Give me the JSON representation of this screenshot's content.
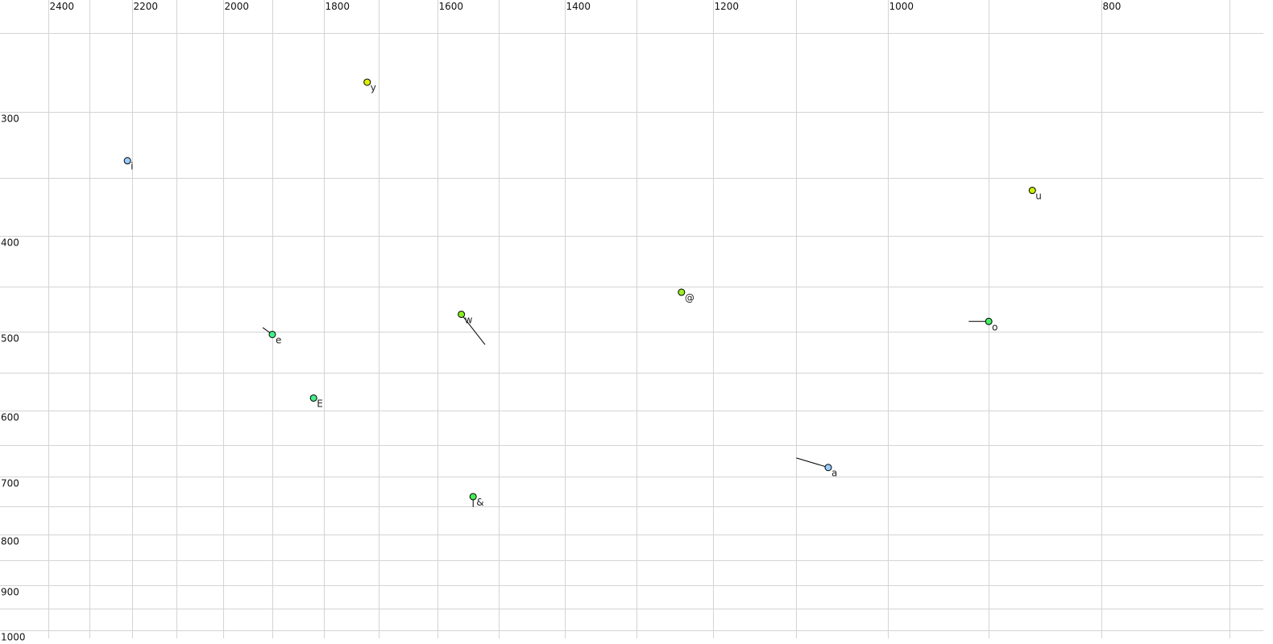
{
  "chart_data": {
    "type": "scatter",
    "title": "",
    "xlabel": "",
    "ylabel": "",
    "x_scale": "log",
    "y_scale": "log",
    "x_reversed": true,
    "xlim": [
      2400,
      700
    ],
    "ylim": [
      250,
      1000
    ],
    "grid": true,
    "x_ticks": [
      2400,
      2300,
      2200,
      2100,
      2000,
      1900,
      1800,
      1700,
      1600,
      1500,
      1400,
      1300,
      1200,
      1100,
      1000,
      900,
      800,
      700
    ],
    "x_tick_labels": [
      "2400",
      "",
      "2200",
      "",
      "2000",
      "",
      "1800",
      "",
      "1600",
      "",
      "1400",
      "",
      "1200",
      "",
      "1000",
      "",
      "800",
      ""
    ],
    "y_ticks": [
      250,
      300,
      350,
      400,
      450,
      500,
      550,
      600,
      650,
      700,
      750,
      800,
      850,
      900,
      950,
      1000
    ],
    "y_tick_labels": [
      "",
      "300",
      "",
      "400",
      "",
      "500",
      "",
      "600",
      "",
      "700",
      "",
      "800",
      "",
      "900",
      "",
      "1000"
    ],
    "points": [
      {
        "label": "y",
        "F2": 1721,
        "F1": 280,
        "color": "#ddee00"
      },
      {
        "label": "i",
        "F2": 2210,
        "F1": 336,
        "color": "#99ccff"
      },
      {
        "label": "u",
        "F2": 860,
        "F1": 360,
        "color": "#ccee00"
      },
      {
        "label": "@",
        "F2": 1240,
        "F1": 456,
        "color": "#99ee22"
      },
      {
        "label": "w",
        "F2": 1560,
        "F1": 480,
        "color": "#88ee22",
        "tail": {
          "F2": 1522,
          "F1": 515
        }
      },
      {
        "label": "o",
        "F2": 900,
        "F1": 488,
        "color": "#44ee66",
        "tail": {
          "F2": 919,
          "F1": 488
        }
      },
      {
        "label": "e",
        "F2": 1900,
        "F1": 503,
        "color": "#44ee88",
        "tail": {
          "F2": 1919,
          "F1": 495
        }
      },
      {
        "label": "E",
        "F2": 1820,
        "F1": 583,
        "color": "#44ee88"
      },
      {
        "label": "a",
        "F2": 1064,
        "F1": 685,
        "color": "#99ccff",
        "tail": {
          "F2": 1100,
          "F1": 670
        }
      },
      {
        "label": "&",
        "F2": 1541,
        "F1": 733,
        "color": "#44ee55",
        "tail": {
          "F2": 1541,
          "F1": 751
        }
      }
    ]
  }
}
